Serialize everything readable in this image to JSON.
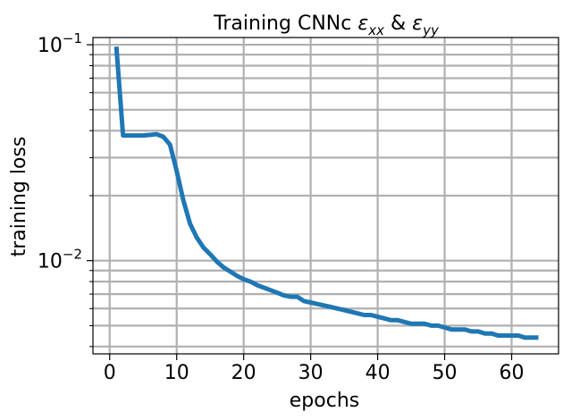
{
  "chart_data": {
    "type": "line",
    "title": "Training CNNc εxx & εyy",
    "title_parts": {
      "prefix": "Training CNNc ",
      "eps1": "ε",
      "sub1": "xx",
      "amp": " & ",
      "eps2": "ε",
      "sub2": "yy"
    },
    "xlabel": "epochs",
    "ylabel": "training loss",
    "yscale": "log",
    "xlim": [
      -2.5,
      67
    ],
    "ylim": [
      0.0037,
      0.108
    ],
    "grid": true,
    "line_color": "#1f77b4",
    "grid_color": "#b0b0b0",
    "x_ticks": [
      0,
      10,
      20,
      30,
      40,
      50,
      60
    ],
    "x_tick_labels": [
      "0",
      "10",
      "20",
      "30",
      "40",
      "50",
      "60"
    ],
    "y_major_ticks": [
      0.01,
      0.1
    ],
    "y_major_tick_labels": [
      {
        "base": "10",
        "exp": "−2"
      },
      {
        "base": "10",
        "exp": "−1"
      }
    ],
    "y_minor_ticks": [
      0.004,
      0.005,
      0.006,
      0.007,
      0.008,
      0.009,
      0.02,
      0.03,
      0.04,
      0.05,
      0.06,
      0.07,
      0.08,
      0.09
    ],
    "series": [
      {
        "x": [
          1,
          2,
          3,
          4,
          5,
          6,
          7,
          8,
          9,
          10,
          11,
          12,
          13,
          14,
          15,
          16,
          17,
          18,
          19,
          20,
          21,
          22,
          23,
          24,
          25,
          26,
          27,
          28,
          29,
          30,
          31,
          32,
          33,
          34,
          35,
          36,
          37,
          38,
          39,
          40,
          41,
          42,
          43,
          44,
          45,
          46,
          47,
          48,
          49,
          50,
          51,
          52,
          53,
          54,
          55,
          56,
          57,
          58,
          59,
          60,
          61,
          62,
          63,
          64
        ],
        "y": [
          0.098,
          0.038,
          0.038,
          0.038,
          0.038,
          0.0382,
          0.0385,
          0.0375,
          0.0345,
          0.026,
          0.019,
          0.0148,
          0.0128,
          0.0115,
          0.0107,
          0.0099,
          0.0093,
          0.0089,
          0.0085,
          0.0082,
          0.008,
          0.0077,
          0.0075,
          0.0073,
          0.0071,
          0.0069,
          0.0068,
          0.0068,
          0.0065,
          0.0064,
          0.0063,
          0.0062,
          0.0061,
          0.006,
          0.0059,
          0.0058,
          0.0057,
          0.0056,
          0.0056,
          0.0055,
          0.0054,
          0.0053,
          0.0053,
          0.0052,
          0.0051,
          0.0051,
          0.0051,
          0.005,
          0.005,
          0.0049,
          0.0048,
          0.0048,
          0.0048,
          0.0047,
          0.0047,
          0.0046,
          0.0046,
          0.0045,
          0.0045,
          0.0045,
          0.0045,
          0.0044,
          0.0044,
          0.0044
        ]
      }
    ]
  }
}
